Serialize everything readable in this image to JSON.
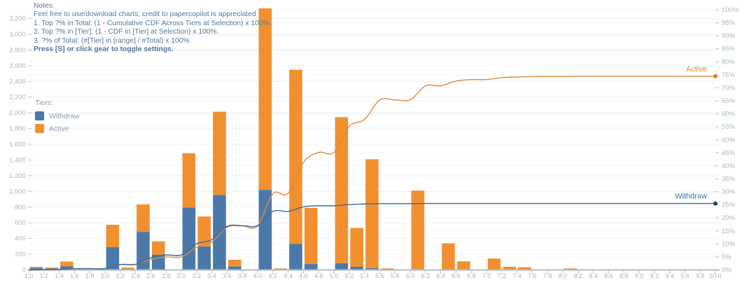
{
  "notes": {
    "title": "Notes:",
    "lines": [
      "Feel free to use/download charts; credit to papercopilot is appreciated",
      "1. Top ?% in Total: (1 - Cumulative CDF Across Tiers at Selection) x 100%.",
      "2. Top ?% in [Tier]: (1 - CDF in [Tier] at Selection) x 100%.",
      "3. ?% of Total: (#[Tier] in [range] / #Total) x 100%."
    ],
    "emphasis": "Press [S] or click gear to toggle settings."
  },
  "legend": {
    "title": "Tiers:",
    "items": [
      {
        "label": "Withdraw",
        "color": "#4a79a9"
      },
      {
        "label": "Active",
        "color": "#f29030"
      }
    ]
  },
  "line_labels": {
    "active": "Active",
    "withdraw": "Withdraw"
  },
  "colors": {
    "bar_withdraw": "#4a79a9",
    "bar_active": "#f29030",
    "line_withdraw": "#3a6b99",
    "line_active": "#e08a3c",
    "dot_withdraw": "#1d4365",
    "dot_active": "#e6802c",
    "label_withdraw": "#4273a3",
    "label_active": "#e8883c",
    "axis_text": "#a9b5c2",
    "axis_line": "#b3bcc5",
    "tick_mark": "#b9c2cb",
    "grid_major": "#edf0f4",
    "grid_minor": "#f5f7fa"
  },
  "chart_data": {
    "type": "bar",
    "stacked": true,
    "x_start": 1.0,
    "x_end": 10.0,
    "bin_width": 0.2,
    "bin_starts": [
      1.0,
      1.2,
      1.4,
      1.6,
      1.8,
      2.0,
      2.2,
      2.4,
      2.6,
      2.8,
      3.0,
      3.2,
      3.4,
      3.6,
      3.8,
      4.0,
      4.2,
      4.4,
      4.6,
      4.8,
      5.0,
      5.2,
      5.4,
      5.6,
      5.8,
      6.0,
      6.2,
      6.4,
      6.6,
      6.8,
      7.0,
      7.2,
      7.4,
      7.6,
      7.8,
      8.0,
      8.2,
      8.4,
      8.6,
      8.8,
      9.0,
      9.2,
      9.4,
      9.6,
      9.8
    ],
    "series": [
      {
        "name": "Withdraw",
        "values": [
          25,
          18,
          45,
          8,
          2,
          290,
          5,
          485,
          195,
          0,
          795,
          300,
          955,
          45,
          0,
          1020,
          0,
          330,
          75,
          0,
          85,
          40,
          25,
          0,
          0,
          10,
          0,
          0,
          0,
          0,
          0,
          0,
          0,
          0,
          0,
          0,
          0,
          0,
          0,
          0,
          0,
          0,
          0,
          0,
          0
        ]
      },
      {
        "name": "Active",
        "values": [
          15,
          12,
          62,
          7,
          6,
          285,
          25,
          350,
          170,
          0,
          690,
          380,
          1060,
          85,
          0,
          2310,
          20,
          2220,
          715,
          0,
          1860,
          495,
          1385,
          20,
          0,
          1000,
          0,
          340,
          110,
          0,
          145,
          40,
          35,
          0,
          0,
          20,
          0,
          0,
          0,
          0,
          0,
          0,
          0,
          0,
          0
        ]
      }
    ],
    "cumulative_lines": {
      "description": "Cumulative share of grand total per tier, plotted on right % axis, smoothed",
      "withdraw_final_pct": 25.5,
      "active_final_pct": 74.5
    },
    "axes": {
      "left": {
        "min": 0,
        "max": 3330,
        "tick_step": 200,
        "labels": [
          "0",
          "200",
          "400",
          "600",
          "800",
          "1,000",
          "1,200",
          "1,400",
          "1,600",
          "1,800",
          "2,000",
          "2,200",
          "2,400",
          "2,600",
          "2,800",
          "3,000",
          "3,200"
        ]
      },
      "right": {
        "min": 0,
        "max": 100,
        "tick_step": 5,
        "labels": [
          "0%",
          "5%",
          "10%",
          "15%",
          "20%",
          "25%",
          "30%",
          "35%",
          "40%",
          "45%",
          "50%",
          "55%",
          "60%",
          "65%",
          "70%",
          "75%",
          "80%",
          "85%",
          "90%",
          "95%",
          "100%"
        ]
      },
      "x": {
        "labels": [
          "1.0",
          "1.2",
          "1.4",
          "1.6",
          "1.8",
          "2.0",
          "2.2",
          "2.4",
          "2.6",
          "2.8",
          "3.0",
          "3.2",
          "3.4",
          "3.6",
          "3.8",
          "4.0",
          "4.2",
          "4.4",
          "4.6",
          "4.8",
          "5.0",
          "5.2",
          "5.4",
          "5.6",
          "5.8",
          "6.0",
          "6.2",
          "6.4",
          "6.6",
          "6.8",
          "7.0",
          "7.2",
          "7.4",
          "7.6",
          "7.8",
          "8.0",
          "8.2",
          "8.4",
          "8.6",
          "8.8",
          "9.0",
          "9.2",
          "9.4",
          "9.6",
          "9.8",
          "10.0"
        ]
      }
    },
    "grid": true,
    "legend_position": "left-middle",
    "title": "",
    "xlabel": "",
    "ylabel": ""
  }
}
